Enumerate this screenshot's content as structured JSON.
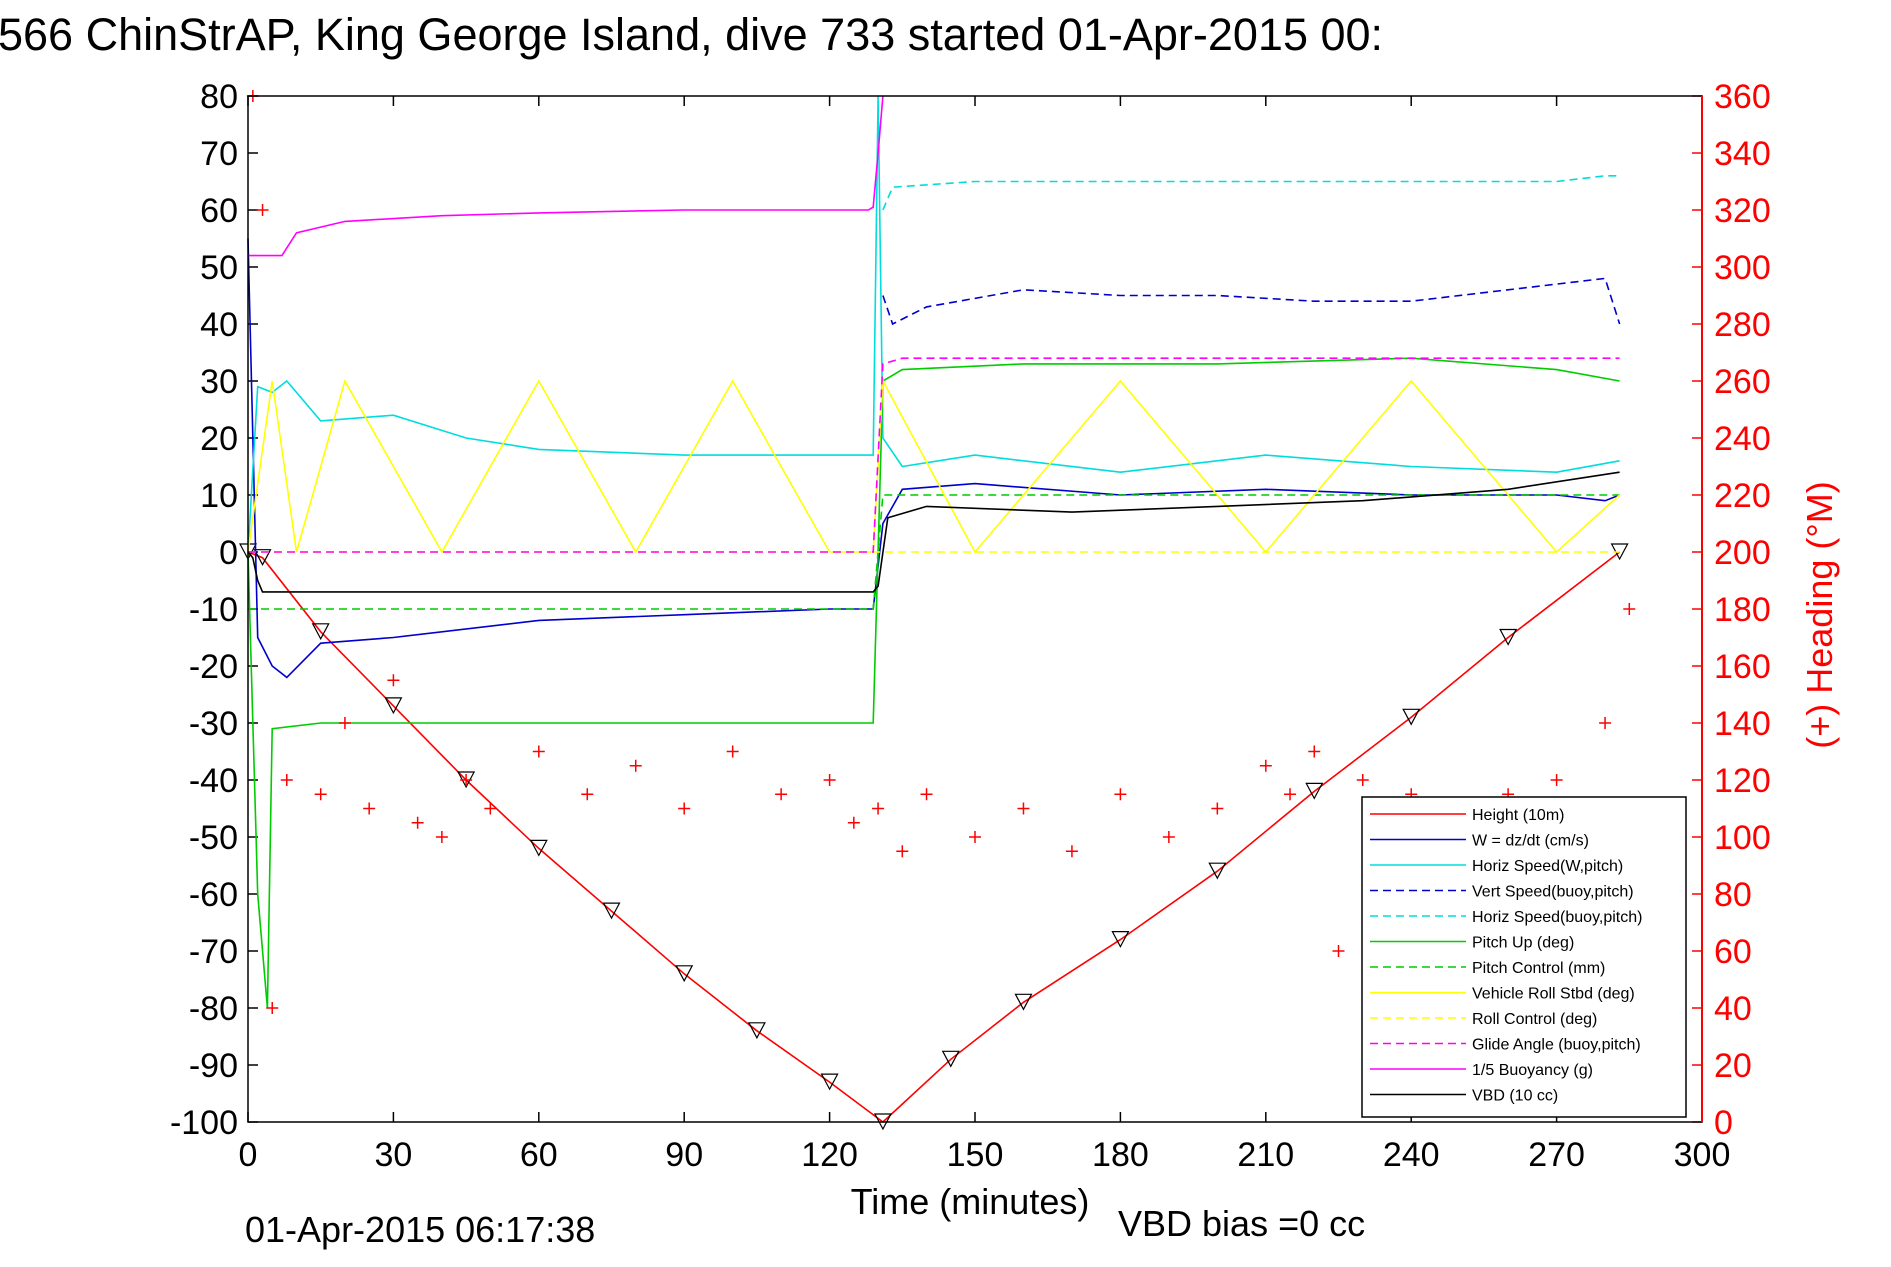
{
  "title": "566 ChinStrAP, King George Island, dive 733 started 01-Apr-2015 00:",
  "footer": {
    "timestamp": "01-Apr-2015 06:17:38",
    "vbd_bias": "VBD bias =0 cc"
  },
  "colors": {
    "height": "#ff0000",
    "w": "#0000cc",
    "horiz_speed": "#00dddd",
    "pitch": "#00cc00",
    "roll": "#ffff00",
    "glide": "#ff00ff",
    "buoyancy": "#ff00ff",
    "vbd": "#000000",
    "heading": "#ff0000"
  },
  "chart_data": {
    "type": "line",
    "xlabel": "Time (minutes)",
    "ylabel": "",
    "y2label": "(+) Heading (°M)",
    "xlim": [
      0,
      300
    ],
    "ylim": [
      -100,
      80
    ],
    "y2lim": [
      0,
      360
    ],
    "xticks": [
      "0",
      "30",
      "60",
      "90",
      "120",
      "150",
      "180",
      "210",
      "240",
      "270",
      "300"
    ],
    "yticks": [
      "80",
      "70",
      "60",
      "50",
      "40",
      "30",
      "20",
      "10",
      "0",
      "-10",
      "-20",
      "-30",
      "-40",
      "-50",
      "-60",
      "-70",
      "-80",
      "-90",
      "-100"
    ],
    "y2ticks": [
      "360",
      "340",
      "320",
      "300",
      "280",
      "260",
      "240",
      "220",
      "200",
      "180",
      "160",
      "140",
      "120",
      "100",
      "80",
      "60",
      "40",
      "20",
      "0"
    ],
    "grid": false,
    "legend_position": "lower-right",
    "legend": [
      {
        "label": "Height (10m)",
        "color": "#ff0000",
        "style": "solid"
      },
      {
        "label": "W = dz/dt (cm/s)",
        "color": "#0000cc",
        "style": "solid"
      },
      {
        "label": "Horiz Speed(W,pitch)",
        "color": "#00dddd",
        "style": "solid"
      },
      {
        "label": "Vert Speed(buoy,pitch)",
        "color": "#0000cc",
        "style": "dashed"
      },
      {
        "label": "Horiz Speed(buoy,pitch)",
        "color": "#00dddd",
        "style": "dashed"
      },
      {
        "label": "Pitch Up (deg)",
        "color": "#00cc00",
        "style": "solid"
      },
      {
        "label": "Pitch Control (mm)",
        "color": "#00cc00",
        "style": "dashed"
      },
      {
        "label": "Vehicle Roll Stbd (deg)",
        "color": "#ffff00",
        "style": "solid"
      },
      {
        "label": "Roll Control (deg)",
        "color": "#ffff00",
        "style": "dashed"
      },
      {
        "label": "Glide Angle (buoy,pitch)",
        "color": "#ff00ff",
        "style": "dashed"
      },
      {
        "label": "1/5 Buoyancy (g)",
        "color": "#ff00ff",
        "style": "solid"
      },
      {
        "label": "VBD (10 cc)",
        "color": "#000000",
        "style": "solid"
      }
    ],
    "series": [
      {
        "name": "Height (10m)",
        "x": [
          0,
          3,
          15,
          30,
          45,
          60,
          75,
          90,
          105,
          120,
          131,
          145,
          160,
          180,
          200,
          220,
          240,
          260,
          283
        ],
        "y": [
          0,
          -1,
          -14,
          -27,
          -40,
          -52,
          -63,
          -74,
          -84,
          -93,
          -100,
          -89,
          -79,
          -68,
          -56,
          -42,
          -29,
          -15,
          0
        ]
      },
      {
        "name": "W = dz/dt (cm/s)",
        "x": [
          0,
          2,
          5,
          8,
          15,
          30,
          60,
          90,
          120,
          129,
          131,
          135,
          150,
          180,
          210,
          240,
          270,
          280,
          283
        ],
        "y": [
          55,
          -15,
          -20,
          -22,
          -16,
          -15,
          -12,
          -11,
          -10,
          -10,
          5,
          11,
          12,
          10,
          11,
          10,
          10,
          9,
          10
        ]
      },
      {
        "name": "Horiz Speed(W,pitch)",
        "x": [
          0,
          2,
          5,
          8,
          15,
          30,
          45,
          60,
          90,
          120,
          129,
          130,
          131,
          135,
          150,
          180,
          210,
          240,
          270,
          283
        ],
        "y": [
          0,
          29,
          28,
          30,
          23,
          24,
          20,
          18,
          17,
          17,
          17,
          80,
          20,
          15,
          17,
          14,
          17,
          15,
          14,
          16
        ]
      },
      {
        "name": "Vert Speed(buoy,pitch)",
        "x": [
          131,
          133,
          140,
          160,
          180,
          200,
          220,
          240,
          260,
          280,
          283
        ],
        "y": [
          45,
          40,
          43,
          46,
          45,
          45,
          44,
          44,
          46,
          48,
          40
        ]
      },
      {
        "name": "Horiz Speed(buoy,pitch)",
        "x": [
          131,
          133,
          150,
          180,
          210,
          240,
          270,
          280,
          283
        ],
        "y": [
          60,
          64,
          65,
          65,
          65,
          65,
          65,
          66,
          66
        ]
      },
      {
        "name": "Pitch Up (deg)",
        "x": [
          0,
          2,
          4,
          5,
          15,
          60,
          100,
          120,
          129,
          131,
          135,
          160,
          200,
          240,
          270,
          283
        ],
        "y": [
          0,
          -60,
          -80,
          -31,
          -30,
          -30,
          -30,
          -30,
          -30,
          30,
          32,
          33,
          33,
          34,
          32,
          30
        ]
      },
      {
        "name": "Pitch Control (mm)",
        "x": [
          0,
          5,
          129,
          131,
          283
        ],
        "y": [
          -10,
          -10,
          -10,
          10,
          10
        ]
      },
      {
        "name": "Vehicle Roll Stbd (deg)",
        "x": [
          0,
          5,
          10,
          20,
          40,
          60,
          80,
          100,
          120,
          129,
          131,
          150,
          180,
          210,
          240,
          270,
          283
        ],
        "y": [
          0,
          30,
          0,
          30,
          0,
          30,
          0,
          30,
          0,
          0,
          30,
          0,
          30,
          0,
          30,
          0,
          10
        ]
      },
      {
        "name": "Roll Control (deg)",
        "x": [
          0,
          5,
          129,
          131,
          283
        ],
        "y": [
          0,
          0,
          0,
          0,
          0
        ]
      },
      {
        "name": "Glide Angle (buoy,pitch)",
        "x": [
          0,
          129,
          131,
          135,
          283
        ],
        "y": [
          0,
          0,
          33,
          34,
          34
        ]
      },
      {
        "name": "1/5 Buoyancy (g)",
        "x": [
          0,
          2,
          7,
          10,
          20,
          40,
          60,
          90,
          128,
          129,
          130,
          131
        ],
        "y": [
          52,
          52,
          52,
          56,
          58,
          59,
          59.5,
          60,
          60,
          60.5,
          70,
          80
        ]
      },
      {
        "name": "VBD (10 cc)",
        "x": [
          0,
          1,
          2,
          3,
          129,
          130,
          132,
          140,
          170,
          200,
          230,
          260,
          283
        ],
        "y": [
          0,
          -1,
          -5,
          -7,
          -7,
          -6,
          6,
          8,
          7,
          8,
          9,
          11,
          14
        ]
      },
      {
        "name": "(+) Heading (°M)",
        "axis": "right",
        "style": "markers",
        "x": [
          1,
          3,
          5,
          8,
          15,
          20,
          25,
          30,
          35,
          40,
          45,
          50,
          60,
          70,
          80,
          90,
          100,
          110,
          120,
          125,
          130,
          135,
          140,
          150,
          160,
          170,
          180,
          190,
          200,
          210,
          215,
          220,
          225,
          230,
          240,
          250,
          260,
          270,
          280,
          285
        ],
        "y": [
          360,
          320,
          40,
          120,
          115,
          140,
          110,
          155,
          105,
          100,
          120,
          110,
          130,
          115,
          125,
          110,
          130,
          115,
          120,
          105,
          110,
          95,
          115,
          100,
          110,
          95,
          115,
          100,
          110,
          125,
          115,
          130,
          60,
          120,
          115,
          110,
          115,
          120,
          140,
          180
        ]
      }
    ]
  }
}
